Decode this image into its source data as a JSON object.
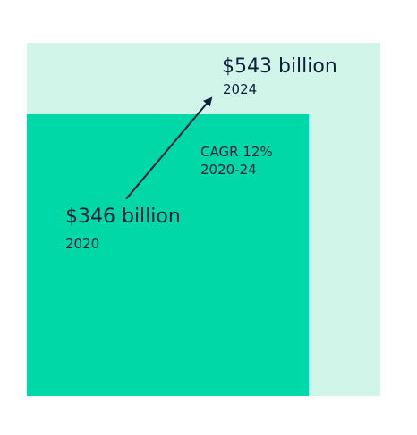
{
  "chart_data": {
    "type": "area",
    "series": [
      {
        "label": "$543 billion",
        "year": "2024",
        "value": 543,
        "color": "#d2f5ea"
      },
      {
        "label": "$346 billion",
        "year": "2020",
        "value": 346,
        "color": "#00d8a8"
      }
    ],
    "annotation": {
      "line1": "CAGR 12%",
      "line2": "2020-24"
    }
  }
}
